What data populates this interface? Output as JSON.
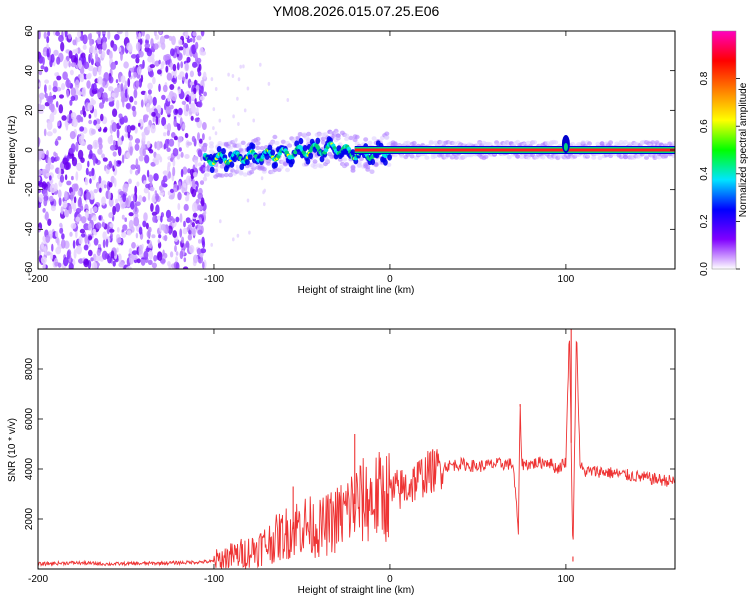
{
  "title": "YM08.2026.015.07.25.E06",
  "chart_data": [
    {
      "type": "heatmap",
      "xlabel": "Height of straight line (km)",
      "ylabel": "Frequency (Hz)",
      "xlim": [
        -200,
        162
      ],
      "ylim": [
        -60,
        60
      ],
      "xticks": [
        -200,
        -100,
        0,
        100
      ],
      "yticks": [
        -60,
        -40,
        -20,
        0,
        20,
        40,
        60
      ],
      "colorbar": {
        "label": "Normalized spectral amplitude",
        "range": [
          0.0,
          1.0
        ],
        "ticks": [
          0.0,
          0.2,
          0.4,
          0.6,
          0.8
        ],
        "colors": [
          "#ffffff",
          "#8000ff",
          "#0000ff",
          "#00e5ff",
          "#00ff00",
          "#ffff00",
          "#ff8000",
          "#ff0000",
          "#ff00c0"
        ]
      },
      "features": {
        "noise_region": {
          "x": [
            -200,
            -105
          ],
          "freq": [
            -60,
            60
          ]
        },
        "signal_track": [
          {
            "x": -105,
            "freq": -5
          },
          {
            "x": -90,
            "freq": -4
          },
          {
            "x": -75,
            "freq": -3
          },
          {
            "x": -60,
            "freq": -2
          },
          {
            "x": -45,
            "freq": 0
          },
          {
            "x": -30,
            "freq": 1
          },
          {
            "x": -20,
            "freq": -2
          },
          {
            "x": -10,
            "freq": -2
          },
          {
            "x": 0,
            "freq": 0
          },
          {
            "x": 50,
            "freq": 0
          },
          {
            "x": 100,
            "freq": 0
          },
          {
            "x": 162,
            "freq": 0
          }
        ],
        "disturbance_at": 100
      }
    },
    {
      "type": "line",
      "xlabel": "Height of straight line (km)",
      "ylabel": "SNR (10 * v/v)",
      "xlim": [
        -200,
        162
      ],
      "ylim": [
        0,
        9600
      ],
      "xticks": [
        -200,
        -100,
        0,
        100
      ],
      "yticks": [
        2000,
        4000,
        6000,
        8000
      ],
      "series": [
        {
          "name": "SNR",
          "color": "#ee3333",
          "x": [
            -200,
            -180,
            -160,
            -140,
            -120,
            -100,
            -90,
            -80,
            -70,
            -60,
            -50,
            -40,
            -30,
            -20,
            -10,
            0,
            10,
            20,
            30,
            40,
            50,
            60,
            70,
            73,
            74,
            75,
            80,
            90,
            95,
            100,
            102,
            104,
            106,
            108,
            110,
            120,
            130,
            140,
            150,
            162
          ],
          "y": [
            200,
            250,
            200,
            220,
            250,
            300,
            500,
            700,
            1000,
            1400,
            1800,
            1600,
            2000,
            2600,
            2800,
            3000,
            3300,
            3800,
            4100,
            4200,
            4100,
            4200,
            4200,
            1500,
            6500,
            4200,
            4200,
            4300,
            4000,
            4300,
            9600,
            500,
            9600,
            4200,
            3900,
            3900,
            3800,
            3700,
            3600,
            3500
          ],
          "spikes": [
            {
              "x": -20,
              "y": 5400
            },
            {
              "x": -55,
              "y": 3300
            },
            {
              "x": 74,
              "y": 6600
            },
            {
              "x": 103,
              "y": 9600
            },
            {
              "x": 104,
              "y": 300
            }
          ]
        }
      ]
    }
  ]
}
